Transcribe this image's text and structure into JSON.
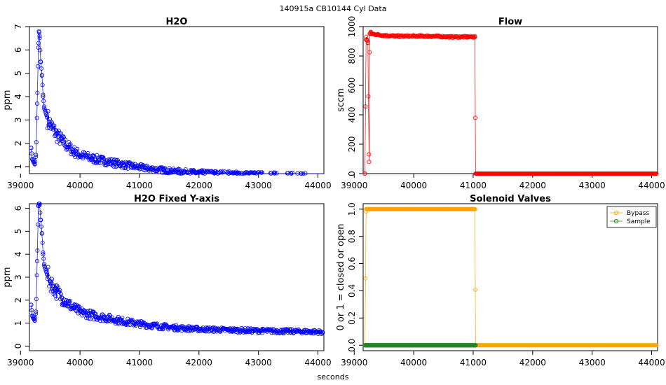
{
  "page": {
    "main_title": "140915a    CB10144   Cyl Data",
    "xlabel": "seconds"
  },
  "colors": {
    "h2o": "#0000ff",
    "flow": "#ff0000",
    "bypass": "#ffa500",
    "sample": "#228b22"
  },
  "chart_data": [
    {
      "id": "h2o",
      "type": "scatter",
      "title": "H2O",
      "xlabel": "",
      "ylabel": "ppm",
      "xlim": [
        39150,
        44100
      ],
      "ylim": [
        0.7,
        7.0
      ],
      "x_ticks": [
        "39000",
        "40000",
        "41000",
        "42000",
        "43000",
        "44000"
      ],
      "y_ticks": [
        "1",
        "2",
        "3",
        "4",
        "5",
        "6",
        "7"
      ],
      "points_connected": true,
      "series": [
        {
          "x": [
            39180,
            39200,
            39220,
            39240,
            39260,
            39280,
            39300,
            39310,
            39320,
            39340,
            39360,
            39380,
            39400,
            39450,
            39500,
            39550,
            39600,
            39700,
            39800,
            39900,
            40000,
            40200,
            40400,
            40600,
            40800,
            41000,
            41200,
            41400,
            41600,
            41800,
            42000,
            42500,
            43000,
            43500,
            44000,
            44080
          ],
          "y": [
            1.8,
            1.3,
            1.2,
            1.1,
            1.5,
            3.7,
            6.1,
            6.8,
            6.6,
            5.5,
            4.9,
            4.0,
            3.5,
            3.1,
            2.8,
            2.6,
            2.4,
            2.1,
            1.85,
            1.65,
            1.5,
            1.35,
            1.25,
            1.15,
            1.05,
            0.97,
            0.9,
            0.85,
            0.8,
            0.77,
            0.74,
            0.7,
            0.67,
            0.65,
            0.62,
            0.6
          ]
        }
      ]
    },
    {
      "id": "flow",
      "type": "line",
      "title": "Flow",
      "xlabel": "",
      "ylabel": "sccm",
      "xlim": [
        39150,
        44100
      ],
      "ylim": [
        0,
        1000
      ],
      "x_ticks": [
        "39000",
        "40000",
        "41000",
        "42000",
        "43000",
        "44000"
      ],
      "y_ticks": [
        "0",
        "200",
        "400",
        "600",
        "800",
        "1000"
      ],
      "series": [
        {
          "x": [
            39180,
            39200,
            39210,
            39230,
            39250,
            39260,
            39280,
            39300,
            39400,
            39500,
            39700,
            40000,
            40300,
            40600,
            40900,
            41030,
            41040,
            41100,
            42000,
            43000,
            44080
          ],
          "y": [
            0,
            930,
            910,
            890,
            80,
            950,
            960,
            950,
            945,
            940,
            935,
            935,
            935,
            930,
            930,
            930,
            0,
            0,
            0,
            0,
            0
          ]
        }
      ]
    },
    {
      "id": "h2o-fixed",
      "type": "scatter",
      "title": "H2O Fixed Y-axis",
      "xlabel": "",
      "ylabel": "ppm",
      "xlim": [
        39150,
        44100
      ],
      "ylim": [
        -0.2,
        6.2
      ],
      "x_ticks": [
        "39000",
        "40000",
        "41000",
        "42000",
        "43000",
        "44000"
      ],
      "y_ticks": [
        "0",
        "1",
        "2",
        "3",
        "4",
        "5",
        "6"
      ],
      "points_connected": true,
      "series": [
        {
          "x": [
            39180,
            39200,
            39220,
            39240,
            39260,
            39280,
            39300,
            39310,
            39320,
            39340,
            39360,
            39380,
            39400,
            39450,
            39500,
            39550,
            39600,
            39700,
            39800,
            39900,
            40000,
            40200,
            40400,
            40600,
            40800,
            41000,
            41200,
            41400,
            41600,
            41800,
            42000,
            42500,
            43000,
            43500,
            44000,
            44080
          ],
          "y": [
            1.8,
            1.3,
            1.2,
            1.1,
            1.5,
            3.7,
            6.1,
            6.2,
            6.2,
            5.5,
            4.9,
            4.0,
            3.5,
            3.1,
            2.8,
            2.6,
            2.4,
            2.1,
            1.85,
            1.65,
            1.5,
            1.35,
            1.25,
            1.15,
            1.05,
            0.97,
            0.9,
            0.85,
            0.8,
            0.77,
            0.74,
            0.7,
            0.67,
            0.65,
            0.62,
            0.6
          ]
        }
      ]
    },
    {
      "id": "solenoid",
      "type": "line",
      "title": "Solenoid Valves",
      "xlabel": "",
      "ylabel": "0 or 1 = closed or open",
      "xlim": [
        39150,
        44100
      ],
      "ylim": [
        -0.04,
        1.04
      ],
      "x_ticks": [
        "39000",
        "40000",
        "41000",
        "42000",
        "43000",
        "44000"
      ],
      "y_ticks": [
        "0.0",
        "0.2",
        "0.4",
        "0.6",
        "0.8",
        "1.0"
      ],
      "legend": {
        "placement": "top-right"
      },
      "series": [
        {
          "name": "Bypass",
          "x": [
            39180,
            39200,
            39220,
            39240,
            39260,
            39300,
            39500,
            40000,
            40500,
            41000,
            41030,
            41040,
            41100,
            42000,
            43000,
            44080
          ],
          "y": [
            0,
            1,
            1,
            1,
            1,
            1,
            1,
            1,
            1,
            1,
            1,
            0,
            0,
            0,
            0,
            0
          ]
        },
        {
          "name": "Sample",
          "x": [
            39180,
            39200,
            39220,
            39240,
            39250,
            41030,
            41040
          ],
          "y": [
            0,
            0,
            0,
            0,
            0,
            0,
            0
          ]
        }
      ]
    }
  ]
}
